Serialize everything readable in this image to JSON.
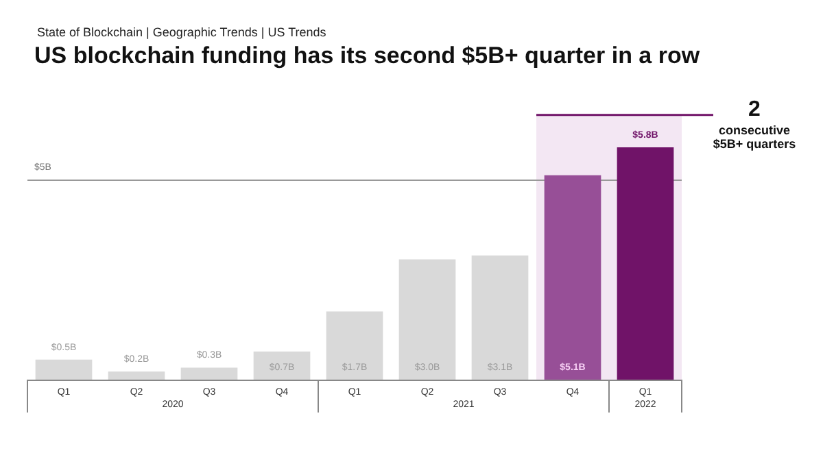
{
  "chart_data": {
    "type": "bar",
    "subtitle": "State of Blockchain | Geographic Trends | US Trends",
    "title": "US blockchain funding has its second $5B+ quarter in a row",
    "categories": [
      "Q1",
      "Q2",
      "Q3",
      "Q4",
      "Q1",
      "Q2",
      "Q3",
      "Q4",
      "Q1"
    ],
    "values": [
      0.5,
      0.2,
      0.3,
      0.7,
      1.7,
      3.0,
      3.1,
      5.1,
      5.8
    ],
    "value_labels": [
      "$0.5B",
      "$0.2B",
      "$0.3B",
      "$0.7B",
      "$1.7B",
      "$3.0B",
      "$3.1B",
      "$5.1B",
      "$5.8B"
    ],
    "colors": [
      "#d9d9d9",
      "#d9d9d9",
      "#d9d9d9",
      "#d9d9d9",
      "#d9d9d9",
      "#d9d9d9",
      "#d9d9d9",
      "#974f97",
      "#701368"
    ],
    "ref_lines": [
      {
        "axis": "y",
        "value": 5,
        "label": "$5B",
        "color": "#999999"
      }
    ],
    "annotations": [
      "2",
      "consecutive $5B+ quarters",
      "2020",
      "2021",
      "2022"
    ],
    "grid": false
  }
}
